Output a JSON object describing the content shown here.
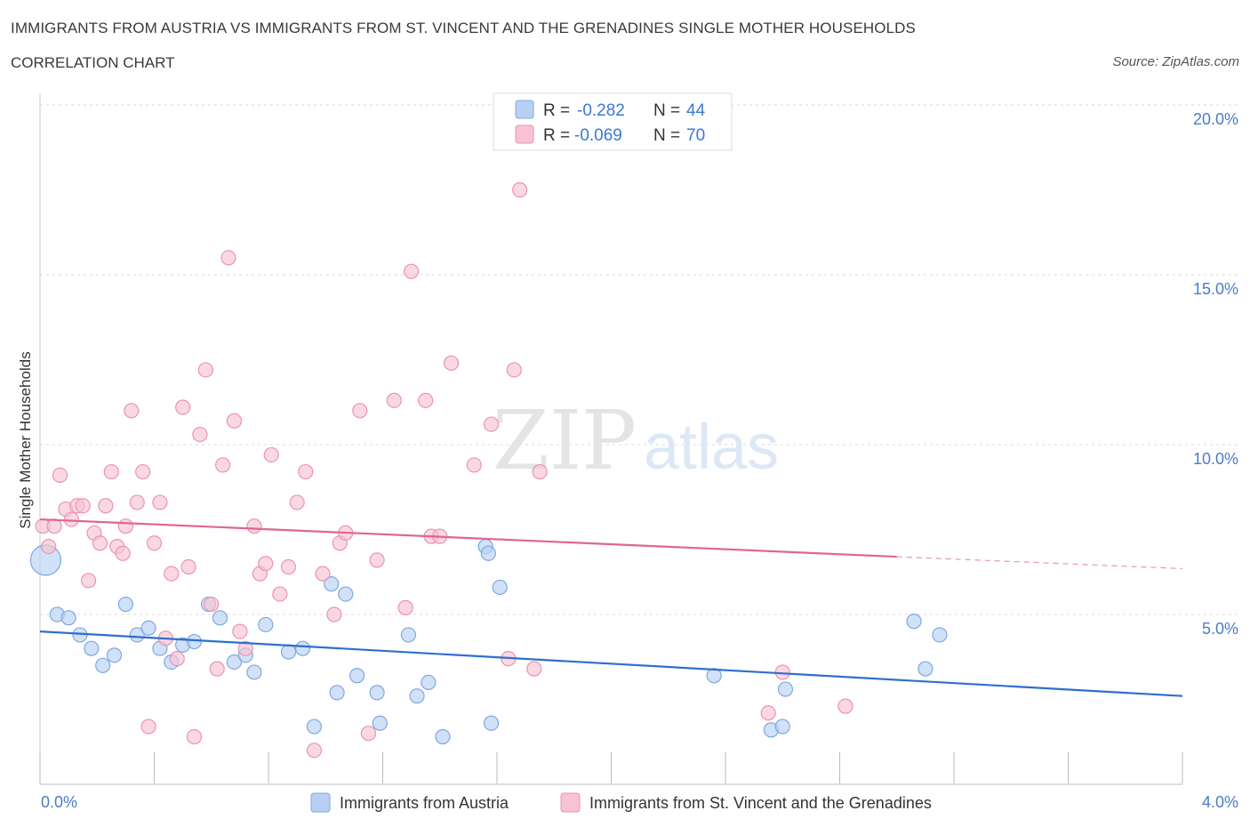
{
  "header": {
    "title": "IMMIGRANTS FROM AUSTRIA VS IMMIGRANTS FROM ST. VINCENT AND THE GRENADINES SINGLE MOTHER HOUSEHOLDS",
    "subtitle": "CORRELATION CHART",
    "source": "Source: ZipAtlas.com"
  },
  "watermark": {
    "zip": "ZIP",
    "atlas": "atlas"
  },
  "colors": {
    "blue_fill": "#b8d1f3",
    "blue_stroke": "#7fa8e0",
    "blue_line": "#2f6fce",
    "pink_fill": "#f7c3d3",
    "pink_stroke": "#eb93b0",
    "pink_line": "#e0668e",
    "tick_label": "#4a7cc9",
    "grid": "#d8d8d8"
  },
  "chart_data": {
    "type": "scatter",
    "title": "IMMIGRANTS FROM AUSTRIA VS IMMIGRANTS FROM ST. VINCENT AND THE GRENADINES SINGLE MOTHER HOUSEHOLDS",
    "xlabel": "",
    "ylabel": "Single Mother Households",
    "xlim": [
      0,
      4
    ],
    "ylim": [
      0,
      20
    ],
    "x_tick_labels": [
      "0.0%",
      "4.0%"
    ],
    "y_ticks": [
      5,
      10,
      15,
      20
    ],
    "y_tick_labels": [
      "5.0%",
      "10.0%",
      "15.0%",
      "20.0%"
    ],
    "legend_stats": [
      {
        "r_label": "R =",
        "r_value": "-0.282",
        "n_label": "N =",
        "n_value": "44"
      },
      {
        "r_label": "R =",
        "r_value": "-0.069",
        "n_label": "N =",
        "n_value": "70"
      }
    ],
    "series": [
      {
        "name": "Immigrants from Austria",
        "trend": {
          "x": [
            0,
            4
          ],
          "y": [
            4.5,
            2.6
          ]
        },
        "points": [
          {
            "x": 0.02,
            "y": 6.6,
            "big": true
          },
          {
            "x": 0.06,
            "y": 5.0
          },
          {
            "x": 0.1,
            "y": 4.9
          },
          {
            "x": 0.14,
            "y": 4.4
          },
          {
            "x": 0.18,
            "y": 4.0
          },
          {
            "x": 0.22,
            "y": 3.5
          },
          {
            "x": 0.26,
            "y": 3.8
          },
          {
            "x": 0.3,
            "y": 5.3
          },
          {
            "x": 0.34,
            "y": 4.4
          },
          {
            "x": 0.38,
            "y": 4.6
          },
          {
            "x": 0.42,
            "y": 4.0
          },
          {
            "x": 0.46,
            "y": 3.6
          },
          {
            "x": 0.5,
            "y": 4.1
          },
          {
            "x": 0.54,
            "y": 4.2
          },
          {
            "x": 0.59,
            "y": 5.3
          },
          {
            "x": 0.63,
            "y": 4.9
          },
          {
            "x": 0.68,
            "y": 3.6
          },
          {
            "x": 0.72,
            "y": 3.8
          },
          {
            "x": 0.75,
            "y": 3.3
          },
          {
            "x": 0.79,
            "y": 4.7
          },
          {
            "x": 0.87,
            "y": 3.9
          },
          {
            "x": 0.92,
            "y": 4.0
          },
          {
            "x": 0.96,
            "y": 1.7
          },
          {
            "x": 1.02,
            "y": 5.9
          },
          {
            "x": 1.04,
            "y": 2.7
          },
          {
            "x": 1.07,
            "y": 5.6
          },
          {
            "x": 1.11,
            "y": 3.2
          },
          {
            "x": 1.18,
            "y": 2.7
          },
          {
            "x": 1.19,
            "y": 1.8
          },
          {
            "x": 1.29,
            "y": 4.4
          },
          {
            "x": 1.32,
            "y": 2.6
          },
          {
            "x": 1.36,
            "y": 3.0
          },
          {
            "x": 1.41,
            "y": 1.4
          },
          {
            "x": 1.56,
            "y": 7.0
          },
          {
            "x": 1.57,
            "y": 6.8
          },
          {
            "x": 1.58,
            "y": 1.8
          },
          {
            "x": 1.61,
            "y": 5.8
          },
          {
            "x": 2.36,
            "y": 3.2
          },
          {
            "x": 2.56,
            "y": 1.6
          },
          {
            "x": 2.6,
            "y": 1.7
          },
          {
            "x": 2.61,
            "y": 2.8
          },
          {
            "x": 3.1,
            "y": 3.4
          },
          {
            "x": 3.06,
            "y": 4.8
          },
          {
            "x": 3.15,
            "y": 4.4
          }
        ]
      },
      {
        "name": "Immigrants from St. Vincent and the Grenadines",
        "trend": {
          "x": [
            0,
            3.0
          ],
          "y": [
            7.8,
            6.7
          ]
        },
        "trend_ext": {
          "x": [
            3.0,
            4
          ],
          "y": [
            6.7,
            6.35
          ]
        },
        "points": [
          {
            "x": 0.01,
            "y": 7.6
          },
          {
            "x": 0.03,
            "y": 7.0
          },
          {
            "x": 0.05,
            "y": 7.6
          },
          {
            "x": 0.07,
            "y": 9.1
          },
          {
            "x": 0.09,
            "y": 8.1
          },
          {
            "x": 0.11,
            "y": 7.8
          },
          {
            "x": 0.13,
            "y": 8.2
          },
          {
            "x": 0.15,
            "y": 8.2
          },
          {
            "x": 0.17,
            "y": 6.0
          },
          {
            "x": 0.19,
            "y": 7.4
          },
          {
            "x": 0.21,
            "y": 7.1
          },
          {
            "x": 0.23,
            "y": 8.2
          },
          {
            "x": 0.25,
            "y": 9.2
          },
          {
            "x": 0.27,
            "y": 7.0
          },
          {
            "x": 0.29,
            "y": 6.8
          },
          {
            "x": 0.3,
            "y": 7.6
          },
          {
            "x": 0.32,
            "y": 11.0
          },
          {
            "x": 0.34,
            "y": 8.3
          },
          {
            "x": 0.36,
            "y": 9.2
          },
          {
            "x": 0.38,
            "y": 1.7
          },
          {
            "x": 0.4,
            "y": 7.1
          },
          {
            "x": 0.42,
            "y": 8.3
          },
          {
            "x": 0.44,
            "y": 4.3
          },
          {
            "x": 0.46,
            "y": 6.2
          },
          {
            "x": 0.48,
            "y": 3.7
          },
          {
            "x": 0.5,
            "y": 11.1
          },
          {
            "x": 0.52,
            "y": 6.4
          },
          {
            "x": 0.54,
            "y": 1.4
          },
          {
            "x": 0.56,
            "y": 10.3
          },
          {
            "x": 0.58,
            "y": 12.2
          },
          {
            "x": 0.6,
            "y": 5.3
          },
          {
            "x": 0.62,
            "y": 3.4
          },
          {
            "x": 0.64,
            "y": 9.4
          },
          {
            "x": 0.66,
            "y": 15.5
          },
          {
            "x": 0.68,
            "y": 10.7
          },
          {
            "x": 0.7,
            "y": 4.5
          },
          {
            "x": 0.72,
            "y": 4.0
          },
          {
            "x": 0.75,
            "y": 7.6
          },
          {
            "x": 0.77,
            "y": 6.2
          },
          {
            "x": 0.79,
            "y": 6.5
          },
          {
            "x": 0.81,
            "y": 9.7
          },
          {
            "x": 0.84,
            "y": 5.6
          },
          {
            "x": 0.87,
            "y": 6.4
          },
          {
            "x": 0.9,
            "y": 8.3
          },
          {
            "x": 0.93,
            "y": 9.2
          },
          {
            "x": 0.96,
            "y": 1.0
          },
          {
            "x": 0.99,
            "y": 6.2
          },
          {
            "x": 1.03,
            "y": 5.0
          },
          {
            "x": 1.05,
            "y": 7.1
          },
          {
            "x": 1.07,
            "y": 7.4
          },
          {
            "x": 1.12,
            "y": 11.0
          },
          {
            "x": 1.15,
            "y": 1.5
          },
          {
            "x": 1.18,
            "y": 6.6
          },
          {
            "x": 1.24,
            "y": 11.3
          },
          {
            "x": 1.28,
            "y": 5.2
          },
          {
            "x": 1.3,
            "y": 15.1
          },
          {
            "x": 1.35,
            "y": 11.3
          },
          {
            "x": 1.37,
            "y": 7.3
          },
          {
            "x": 1.4,
            "y": 7.3
          },
          {
            "x": 1.44,
            "y": 12.4
          },
          {
            "x": 1.52,
            "y": 9.4
          },
          {
            "x": 1.58,
            "y": 10.6
          },
          {
            "x": 1.64,
            "y": 3.7
          },
          {
            "x": 1.66,
            "y": 12.2
          },
          {
            "x": 1.68,
            "y": 17.5
          },
          {
            "x": 1.73,
            "y": 3.4
          },
          {
            "x": 1.75,
            "y": 9.2
          },
          {
            "x": 2.55,
            "y": 2.1
          },
          {
            "x": 2.6,
            "y": 3.3
          },
          {
            "x": 2.82,
            "y": 2.3
          }
        ]
      }
    ]
  }
}
